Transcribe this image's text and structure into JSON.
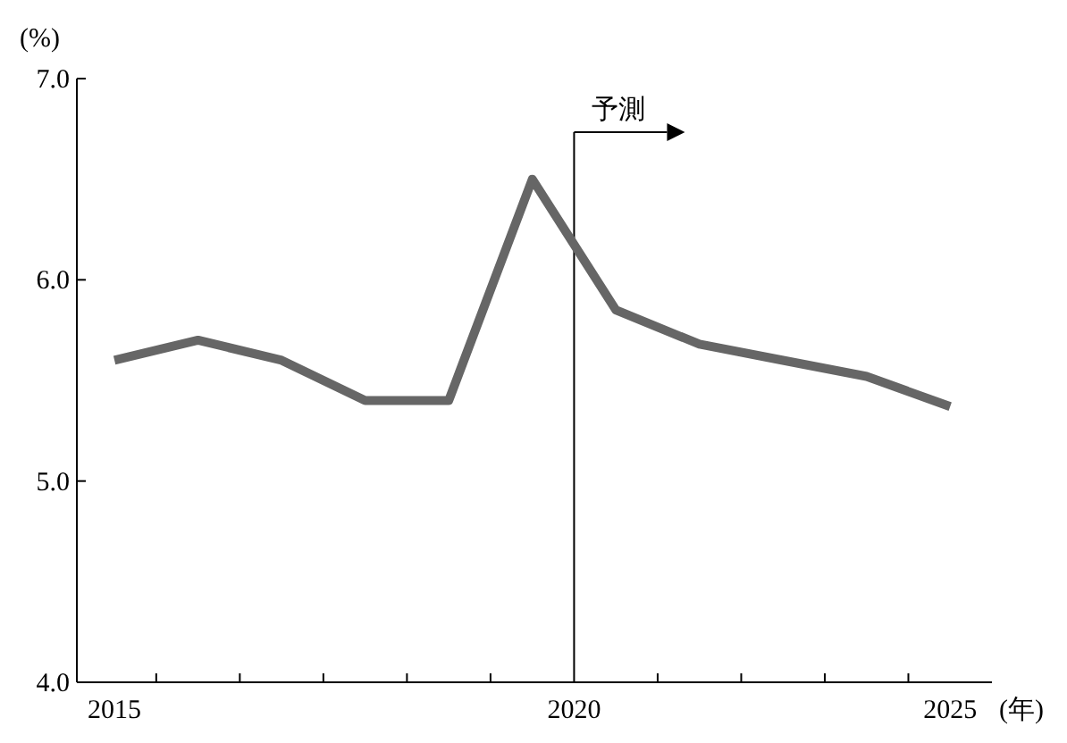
{
  "chart_data": {
    "type": "line",
    "ylabel": "(%)",
    "xlabel": "(年)",
    "x": [
      2015,
      2016,
      2017,
      2018,
      2019,
      2020,
      2021,
      2022,
      2023,
      2024,
      2025
    ],
    "series": [
      {
        "color": "#666666",
        "values": [
          5.6,
          5.7,
          5.6,
          5.4,
          5.4,
          6.5,
          5.85,
          5.68,
          5.6,
          5.52,
          5.37
        ]
      }
    ],
    "xlim": [
      2014.55,
      2025.5
    ],
    "xticks": [
      {
        "value": 2015,
        "label": "2015"
      },
      {
        "value": 2015.5,
        "label": null
      },
      {
        "value": 2016.5,
        "label": null
      },
      {
        "value": 2017.5,
        "label": null
      },
      {
        "value": 2018.5,
        "label": null
      },
      {
        "value": 2019.5,
        "label": null
      },
      {
        "value": 2020.5,
        "label": "2020"
      },
      {
        "value": 2021.5,
        "label": null
      },
      {
        "value": 2022.5,
        "label": null
      },
      {
        "value": 2023.5,
        "label": null
      },
      {
        "value": 2024.5,
        "label": null
      },
      {
        "value": 2025,
        "label": "2025"
      }
    ],
    "ylim": [
      4.0,
      7.0
    ],
    "yticks": [
      {
        "value": 4.0,
        "label": "4.0"
      },
      {
        "value": 5.0,
        "label": "5.0"
      },
      {
        "value": 6.0,
        "label": "6.0"
      },
      {
        "value": 7.0,
        "label": "7.0"
      }
    ],
    "ref_lines": [
      {
        "axis": "x",
        "value": 2020.5,
        "label": "予測",
        "color": "#000000"
      }
    ],
    "grid": false,
    "marker": "none",
    "line_style": "solid"
  }
}
